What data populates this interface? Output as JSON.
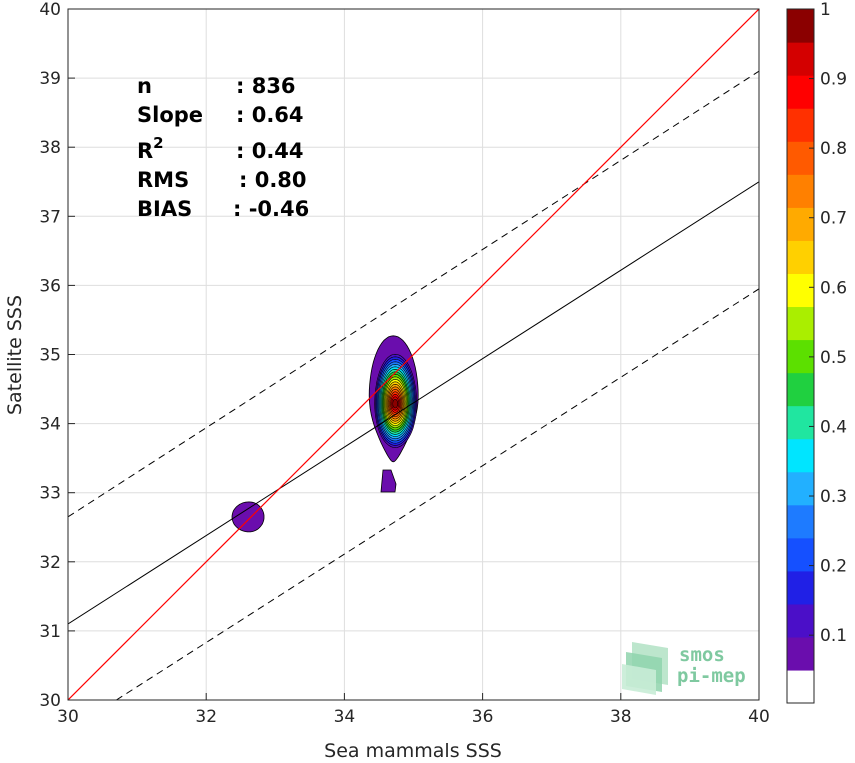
{
  "chart_data": {
    "type": "contour-density-scatter",
    "xlabel": "Sea mammals SSS",
    "ylabel": "Satellite SSS",
    "xlim": [
      30,
      40
    ],
    "ylim": [
      30,
      40
    ],
    "xticks": [
      "30",
      "32",
      "34",
      "36",
      "38",
      "40"
    ],
    "yticks": [
      "30",
      "31",
      "32",
      "33",
      "34",
      "35",
      "36",
      "37",
      "38",
      "39",
      "40"
    ],
    "grid": true,
    "stats": [
      {
        "label": "n",
        "value": ": 836"
      },
      {
        "label": "Slope",
        "value": ": 0.64"
      },
      {
        "label": "R",
        "sup": "2",
        "value": ": 0.44"
      },
      {
        "label": "RMS",
        "value": ": 0.80"
      },
      {
        "label": "BIAS",
        "value": ": -0.46"
      }
    ],
    "lines": {
      "one_to_one": {
        "color": "#ff0000",
        "x": [
          30,
          40
        ],
        "y": [
          30,
          40
        ]
      },
      "regression": {
        "color": "#000000",
        "x": [
          30,
          40
        ],
        "y": [
          31.1,
          37.5
        ]
      },
      "upper_bound": {
        "style": "dashed",
        "x": [
          30,
          40
        ],
        "y": [
          32.65,
          39.1
        ]
      },
      "lower_bound": {
        "style": "dashed",
        "x": [
          30.7,
          40
        ],
        "y": [
          30,
          35.95
        ]
      }
    },
    "density_clusters": [
      {
        "center": [
          32.62,
          32.65
        ],
        "peak_level": 0.1
      },
      {
        "center": [
          34.75,
          34.2
        ],
        "peak_level": 1.0
      }
    ],
    "colorbar": {
      "ticks": [
        "0.1",
        "0.2",
        "0.3",
        "0.4",
        "0.5",
        "0.6",
        "0.7",
        "0.8",
        "0.9",
        "1"
      ],
      "colors": [
        "#ffffff",
        "#6a0dad",
        "#4b0fc8",
        "#2020e6",
        "#1550ff",
        "#1e7bff",
        "#22b0ff",
        "#00e5ff",
        "#20e6a0",
        "#20d040",
        "#5ce000",
        "#aaee00",
        "#ffff00",
        "#ffd000",
        "#ffaa00",
        "#ff8000",
        "#ff5a00",
        "#ff3000",
        "#ff0000",
        "#d40000",
        "#8b0000"
      ]
    }
  },
  "logo": {
    "line1": "smos",
    "line2": "pi-mep"
  }
}
